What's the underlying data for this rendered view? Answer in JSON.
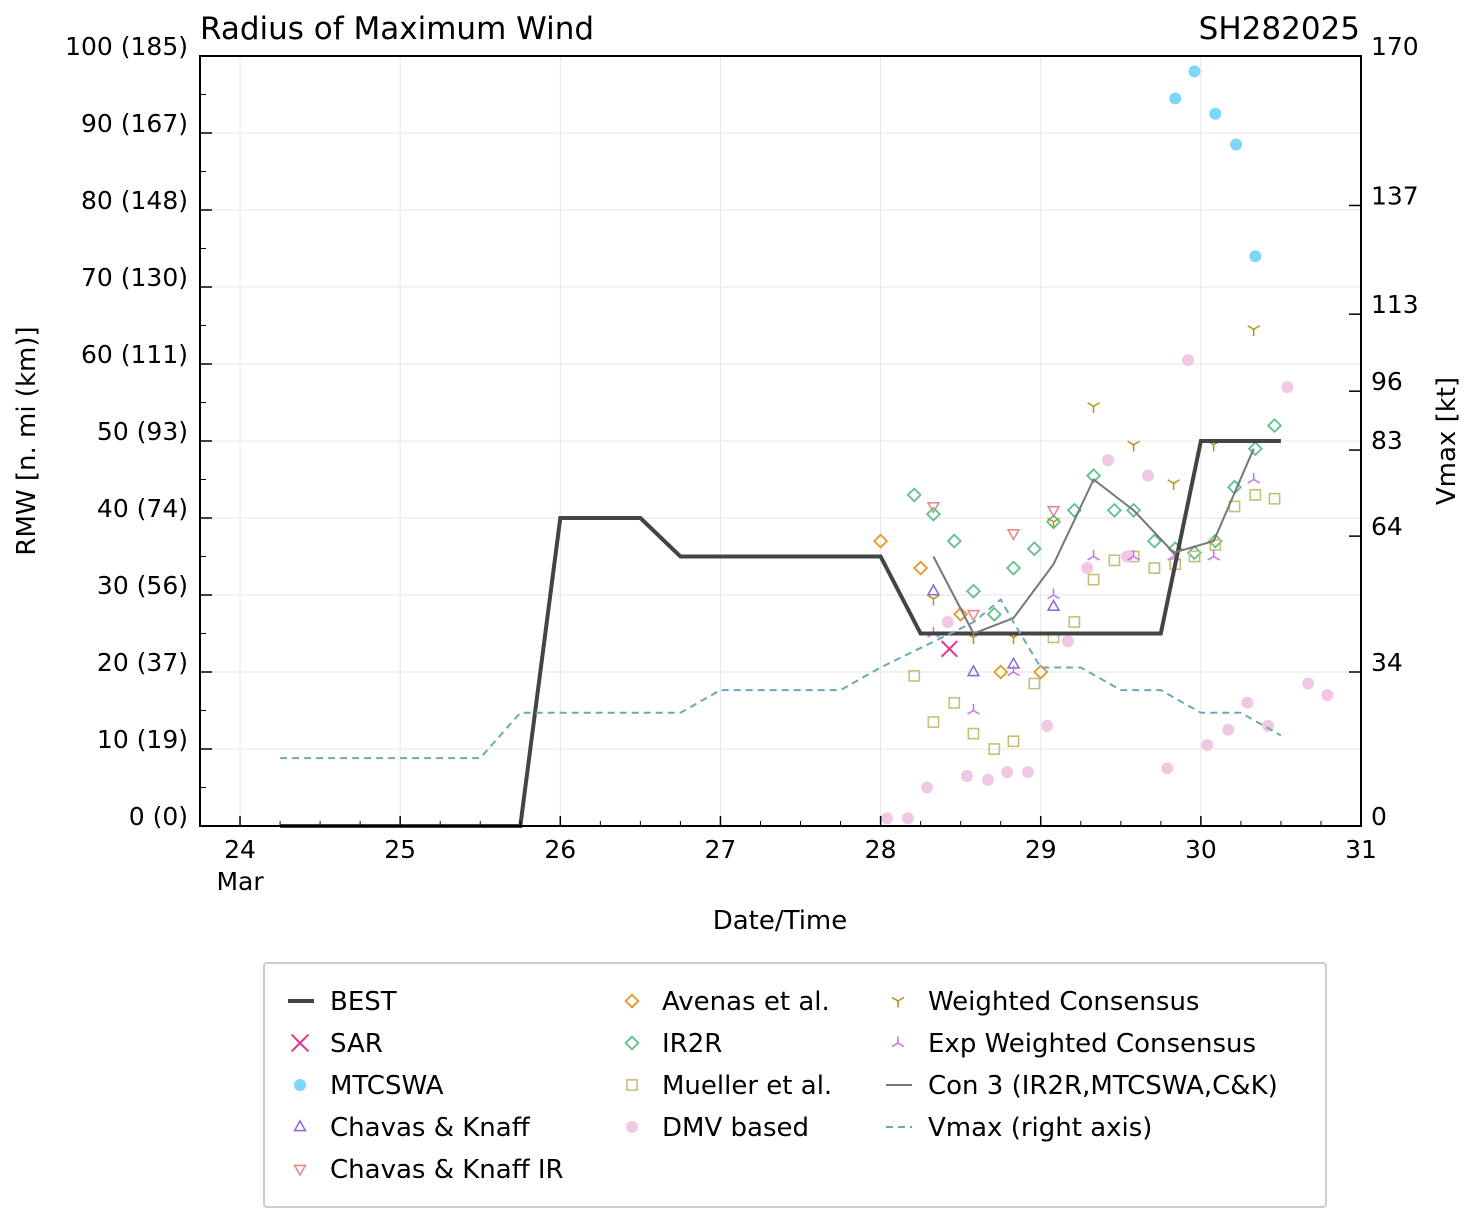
{
  "chart_data": {
    "type": "line",
    "title": "Radius of Maximum Wind",
    "storm_id": "SH282025",
    "xlabel": "Date/Time",
    "ylabel": "RMW [n. mi (km)]",
    "ylabel_right": "Vmax [kt]",
    "xlim": [
      23.75,
      31.0
    ],
    "ylim": [
      0,
      100
    ],
    "x_ticks": [
      {
        "value": 24,
        "label": "24",
        "sublabel": "Mar"
      },
      {
        "value": 25,
        "label": "25",
        "sublabel": ""
      },
      {
        "value": 26,
        "label": "26",
        "sublabel": ""
      },
      {
        "value": 27,
        "label": "27",
        "sublabel": ""
      },
      {
        "value": 28,
        "label": "28",
        "sublabel": ""
      },
      {
        "value": 29,
        "label": "29",
        "sublabel": ""
      },
      {
        "value": 30,
        "label": "30",
        "sublabel": ""
      },
      {
        "value": 31,
        "label": "31",
        "sublabel": ""
      }
    ],
    "y_ticks": [
      {
        "value": 0,
        "label": "0 (0)"
      },
      {
        "value": 10,
        "label": "10 (19)"
      },
      {
        "value": 20,
        "label": "20 (37)"
      },
      {
        "value": 30,
        "label": "30 (56)"
      },
      {
        "value": 40,
        "label": "40 (74)"
      },
      {
        "value": 50,
        "label": "50 (93)"
      },
      {
        "value": 60,
        "label": "60 (111)"
      },
      {
        "value": 70,
        "label": "70 (130)"
      },
      {
        "value": 80,
        "label": "80 (148)"
      },
      {
        "value": 90,
        "label": "90 (167)"
      },
      {
        "value": 100,
        "label": "100 (185)"
      }
    ],
    "y_right_ticks": [
      {
        "value": 0,
        "label": "0"
      },
      {
        "value": 34,
        "label": "34"
      },
      {
        "value": 64,
        "label": "64"
      },
      {
        "value": 83,
        "label": "83"
      },
      {
        "value": 96,
        "label": "96"
      },
      {
        "value": 113,
        "label": "113"
      },
      {
        "value": 137,
        "label": "137"
      },
      {
        "value": 170,
        "label": "170"
      }
    ],
    "y_right_lim": [
      0,
      170
    ],
    "grid": true,
    "legend_position": "bottom",
    "series": [
      {
        "name": "BEST",
        "kind": "line",
        "color": "#444444",
        "x": [
          24.25,
          25.75,
          26.0,
          26.5,
          26.75,
          28.0,
          28.25,
          29.75,
          30.0,
          30.5
        ],
        "y": [
          0,
          0,
          40,
          40,
          35,
          35,
          25,
          25,
          50,
          50
        ]
      },
      {
        "name": "SAR",
        "kind": "marker",
        "marker": "x",
        "color": "#e8318a",
        "x": [
          28.43
        ],
        "y": [
          23
        ]
      },
      {
        "name": "MTCSWA",
        "kind": "marker",
        "marker": "dot",
        "color": "#7fd7f7",
        "x": [
          29.84,
          29.96,
          30.09,
          30.22,
          30.34
        ],
        "y": [
          94.5,
          98,
          92.5,
          88.5,
          74
        ]
      },
      {
        "name": "Chavas & Knaff",
        "kind": "marker",
        "marker": "triangle-up",
        "color": "#8a6ee0",
        "x": [
          28.33,
          28.58,
          28.83,
          29.08
        ],
        "y": [
          30.5,
          20,
          21,
          28.5
        ]
      },
      {
        "name": "Chavas & Knaff IR",
        "kind": "marker",
        "marker": "triangle-down",
        "color": "#e88a8a",
        "x": [
          28.33,
          28.58,
          28.83,
          29.08
        ],
        "y": [
          41.5,
          27.5,
          38,
          41
        ]
      },
      {
        "name": "Avenas et al.",
        "kind": "marker",
        "marker": "diamond",
        "color": "#e8961f",
        "x": [
          28.0,
          28.25,
          28.5,
          28.75,
          29.0
        ],
        "y": [
          37,
          33.5,
          27.5,
          20,
          20
        ]
      },
      {
        "name": "IR2R",
        "kind": "marker",
        "marker": "diamond",
        "color": "#5fc08a",
        "x": [
          28.21,
          28.33,
          28.46,
          28.58,
          28.71,
          28.83,
          28.96,
          29.08,
          29.21,
          29.33,
          29.46,
          29.58,
          29.71,
          29.84,
          29.96,
          30.09,
          30.21,
          30.34,
          30.46
        ],
        "y": [
          43,
          40.5,
          37,
          30.5,
          27.5,
          33.5,
          36,
          39.5,
          41,
          45.5,
          41,
          41,
          37,
          36,
          35.5,
          37,
          44,
          49,
          52
        ]
      },
      {
        "name": "Mueller et al.",
        "kind": "marker",
        "marker": "square",
        "color": "#c8be78",
        "x": [
          28.21,
          28.33,
          28.46,
          28.58,
          28.71,
          28.83,
          28.96,
          29.08,
          29.21,
          29.33,
          29.46,
          29.58,
          29.71,
          29.84,
          29.96,
          30.09,
          30.21,
          30.34,
          30.46
        ],
        "y": [
          19.5,
          13.5,
          16,
          12,
          10,
          11,
          18.5,
          24.5,
          26.5,
          32,
          34.5,
          35,
          33.5,
          34,
          35,
          36.5,
          41.5,
          43,
          42.5
        ]
      },
      {
        "name": "DMV based",
        "kind": "marker",
        "marker": "dot",
        "color": "#f0c8e4",
        "x": [
          28.04,
          28.17,
          28.29,
          28.42,
          28.54,
          28.67,
          28.79,
          28.92,
          29.04,
          29.17,
          29.29,
          29.42,
          29.54,
          29.67,
          29.79,
          29.92,
          30.04,
          30.17,
          30.29,
          30.42,
          30.54,
          30.67,
          30.79
        ],
        "y": [
          1,
          1,
          5,
          26.5,
          6.5,
          6,
          7,
          7,
          13,
          24,
          33.5,
          47.5,
          35,
          45.5,
          7.5,
          60.5,
          10.5,
          12.5,
          16,
          13,
          57,
          18.5,
          17
        ]
      },
      {
        "name": "Weighted Consensus",
        "kind": "marker",
        "marker": "tri-down",
        "color": "#b49628",
        "x": [
          28.33,
          28.58,
          28.83,
          29.08,
          29.33,
          29.58,
          29.83,
          30.08,
          30.33
        ],
        "y": [
          29.5,
          24.5,
          24.5,
          39.5,
          54.5,
          49.5,
          44.5,
          49.5,
          64.5
        ]
      },
      {
        "name": "Exp Weighted Consensus",
        "kind": "marker",
        "marker": "tri-up",
        "color": "#c878e0",
        "x": [
          28.33,
          28.58,
          28.83,
          29.08,
          29.33,
          29.58,
          29.83,
          30.08,
          30.33
        ],
        "y": [
          25,
          15,
          20,
          30,
          35,
          35,
          35,
          35,
          45
        ]
      },
      {
        "name": "Con 3 (IR2R,MTCSWA,C&K)",
        "kind": "line",
        "color": "#777777",
        "x": [
          28.33,
          28.58,
          28.83,
          29.08,
          29.33,
          29.58,
          29.83,
          30.08,
          30.33
        ],
        "y": [
          35,
          25,
          27,
          34,
          45,
          41,
          35.5,
          37,
          49
        ]
      },
      {
        "name": "Vmax (right axis)",
        "kind": "line",
        "dash": true,
        "axis": "right",
        "color": "#6aaab4",
        "x": [
          24.25,
          25.5,
          25.75,
          26.75,
          27.0,
          27.75,
          28.0,
          28.58,
          28.75,
          28.83,
          29.0,
          29.08,
          29.25,
          29.5,
          29.75,
          30.0,
          30.25,
          30.5
        ],
        "y": [
          15,
          15,
          25,
          25,
          30,
          30,
          35,
          45,
          50,
          45,
          35,
          35,
          35,
          30,
          30,
          25,
          25,
          20
        ]
      }
    ]
  },
  "legend": {
    "columns": [
      [
        "BEST",
        "SAR",
        "MTCSWA",
        "Chavas & Knaff",
        "Chavas & Knaff IR"
      ],
      [
        "Avenas et al.",
        "IR2R",
        "Mueller et al.",
        "DMV based"
      ],
      [
        "Weighted Consensus",
        "Exp Weighted Consensus",
        "Con 3 (IR2R,MTCSWA,C&K)",
        "Vmax (right axis)"
      ]
    ]
  }
}
